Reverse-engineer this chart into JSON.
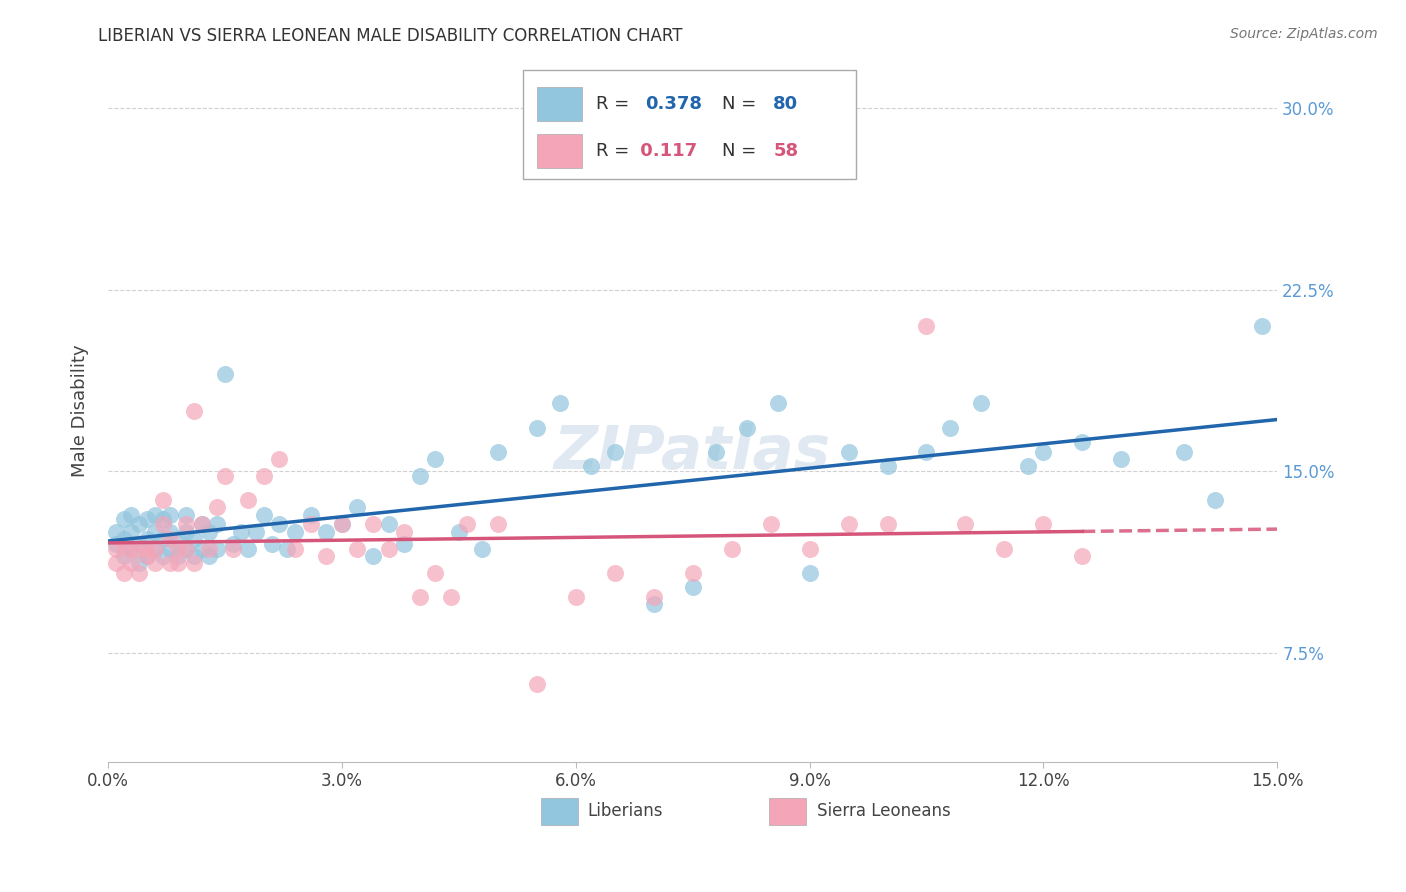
{
  "title": "LIBERIAN VS SIERRA LEONEAN MALE DISABILITY CORRELATION CHART",
  "source": "Source: ZipAtlas.com",
  "ylabel": "Male Disability",
  "xlim": [
    0.0,
    0.15
  ],
  "ylim": [
    0.03,
    0.32
  ],
  "blue_color": "#92c5de",
  "pink_color": "#f4a6b8",
  "blue_line_color": "#2166ac",
  "pink_line_color": "#d6557a",
  "liberian_label": "Liberians",
  "sierraleone_label": "Sierra Leoneans",
  "watermark": "ZIPatlas",
  "blue_seed": 7,
  "pink_seed": 13,
  "blue_x": [
    0.001,
    0.001,
    0.002,
    0.002,
    0.002,
    0.003,
    0.003,
    0.003,
    0.004,
    0.004,
    0.004,
    0.005,
    0.005,
    0.005,
    0.006,
    0.006,
    0.006,
    0.007,
    0.007,
    0.007,
    0.008,
    0.008,
    0.008,
    0.009,
    0.009,
    0.01,
    0.01,
    0.01,
    0.011,
    0.011,
    0.012,
    0.012,
    0.013,
    0.013,
    0.014,
    0.014,
    0.015,
    0.016,
    0.017,
    0.018,
    0.019,
    0.02,
    0.021,
    0.022,
    0.023,
    0.024,
    0.026,
    0.028,
    0.03,
    0.032,
    0.034,
    0.036,
    0.038,
    0.04,
    0.042,
    0.045,
    0.048,
    0.05,
    0.055,
    0.058,
    0.062,
    0.065,
    0.07,
    0.075,
    0.078,
    0.082,
    0.086,
    0.09,
    0.095,
    0.1,
    0.105,
    0.108,
    0.112,
    0.118,
    0.12,
    0.125,
    0.13,
    0.138,
    0.142,
    0.148
  ],
  "blue_y": [
    0.12,
    0.125,
    0.115,
    0.122,
    0.13,
    0.118,
    0.125,
    0.132,
    0.112,
    0.12,
    0.128,
    0.115,
    0.122,
    0.13,
    0.118,
    0.125,
    0.132,
    0.115,
    0.122,
    0.13,
    0.118,
    0.125,
    0.132,
    0.115,
    0.122,
    0.118,
    0.125,
    0.132,
    0.115,
    0.122,
    0.118,
    0.128,
    0.115,
    0.125,
    0.118,
    0.128,
    0.19,
    0.12,
    0.125,
    0.118,
    0.125,
    0.132,
    0.12,
    0.128,
    0.118,
    0.125,
    0.132,
    0.125,
    0.128,
    0.135,
    0.115,
    0.128,
    0.12,
    0.148,
    0.155,
    0.125,
    0.118,
    0.158,
    0.168,
    0.178,
    0.152,
    0.158,
    0.095,
    0.102,
    0.158,
    0.168,
    0.178,
    0.108,
    0.158,
    0.152,
    0.158,
    0.168,
    0.178,
    0.152,
    0.158,
    0.162,
    0.155,
    0.158,
    0.138,
    0.21
  ],
  "pink_x": [
    0.001,
    0.001,
    0.002,
    0.002,
    0.003,
    0.003,
    0.004,
    0.004,
    0.005,
    0.005,
    0.006,
    0.006,
    0.007,
    0.007,
    0.008,
    0.008,
    0.009,
    0.009,
    0.01,
    0.01,
    0.011,
    0.011,
    0.012,
    0.013,
    0.014,
    0.015,
    0.016,
    0.018,
    0.02,
    0.022,
    0.024,
    0.026,
    0.028,
    0.03,
    0.032,
    0.034,
    0.036,
    0.038,
    0.04,
    0.042,
    0.044,
    0.046,
    0.05,
    0.055,
    0.06,
    0.065,
    0.07,
    0.075,
    0.08,
    0.085,
    0.09,
    0.095,
    0.1,
    0.105,
    0.11,
    0.115,
    0.12,
    0.125
  ],
  "pink_y": [
    0.112,
    0.118,
    0.108,
    0.118,
    0.112,
    0.118,
    0.108,
    0.118,
    0.115,
    0.118,
    0.112,
    0.118,
    0.128,
    0.138,
    0.112,
    0.122,
    0.112,
    0.118,
    0.118,
    0.128,
    0.175,
    0.112,
    0.128,
    0.118,
    0.135,
    0.148,
    0.118,
    0.138,
    0.148,
    0.155,
    0.118,
    0.128,
    0.115,
    0.128,
    0.118,
    0.128,
    0.118,
    0.125,
    0.098,
    0.108,
    0.098,
    0.128,
    0.128,
    0.062,
    0.098,
    0.108,
    0.098,
    0.108,
    0.118,
    0.128,
    0.118,
    0.128,
    0.128,
    0.21,
    0.128,
    0.118,
    0.128,
    0.115
  ]
}
